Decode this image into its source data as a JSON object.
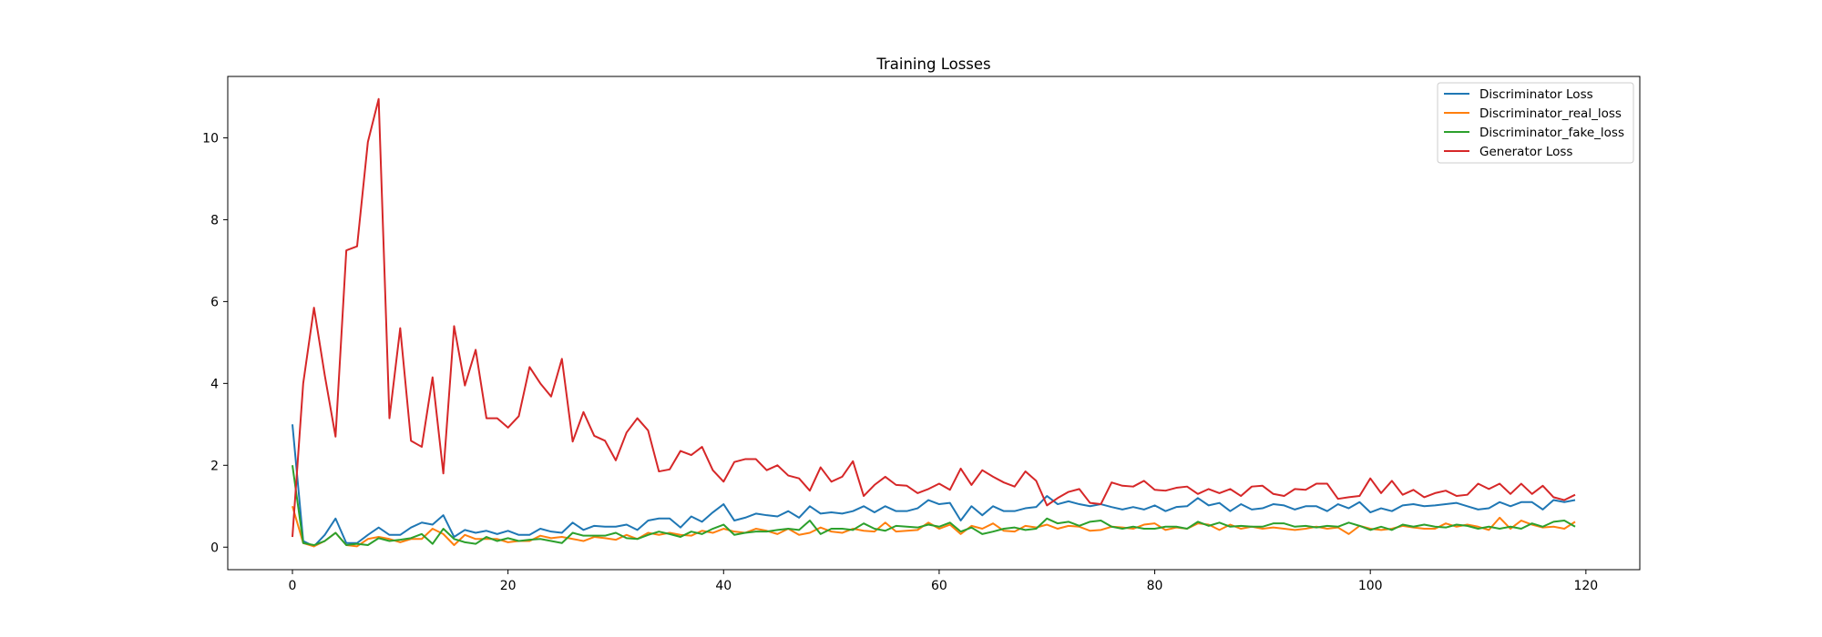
{
  "chart_data": {
    "type": "line",
    "title": "Training Losses",
    "xlabel": "",
    "ylabel": "",
    "xlim": [
      -6,
      125
    ],
    "ylim": [
      -0.55,
      11.5
    ],
    "xticks": [
      0,
      20,
      40,
      60,
      80,
      100,
      120
    ],
    "yticks": [
      0,
      2,
      4,
      6,
      8,
      10
    ],
    "grid": false,
    "legend_position": "top-right",
    "x": [
      0,
      1,
      2,
      3,
      4,
      5,
      6,
      7,
      8,
      9,
      10,
      11,
      12,
      13,
      14,
      15,
      16,
      17,
      18,
      19,
      20,
      21,
      22,
      23,
      24,
      25,
      26,
      27,
      28,
      29,
      30,
      31,
      32,
      33,
      34,
      35,
      36,
      37,
      38,
      39,
      40,
      41,
      42,
      43,
      44,
      45,
      46,
      47,
      48,
      49,
      50,
      51,
      52,
      53,
      54,
      55,
      56,
      57,
      58,
      59,
      60,
      61,
      62,
      63,
      64,
      65,
      66,
      67,
      68,
      69,
      70,
      71,
      72,
      73,
      74,
      75,
      76,
      77,
      78,
      79,
      80,
      81,
      82,
      83,
      84,
      85,
      86,
      87,
      88,
      89,
      90,
      91,
      92,
      93,
      94,
      95,
      96,
      97,
      98,
      99,
      100,
      101,
      102,
      103,
      104,
      105,
      106,
      107,
      108,
      109,
      110,
      111,
      112,
      113,
      114,
      115,
      116,
      117,
      118,
      119
    ],
    "series": [
      {
        "name": "Discriminator Loss",
        "color": "#1f77b4",
        "values": [
          3.0,
          0.15,
          0.02,
          0.3,
          0.7,
          0.1,
          0.1,
          0.3,
          0.48,
          0.3,
          0.3,
          0.48,
          0.6,
          0.55,
          0.78,
          0.25,
          0.42,
          0.35,
          0.4,
          0.32,
          0.4,
          0.3,
          0.3,
          0.45,
          0.38,
          0.35,
          0.6,
          0.42,
          0.52,
          0.5,
          0.5,
          0.55,
          0.42,
          0.65,
          0.7,
          0.7,
          0.48,
          0.75,
          0.62,
          0.85,
          1.05,
          0.65,
          0.72,
          0.82,
          0.78,
          0.75,
          0.88,
          0.72,
          1.0,
          0.82,
          0.85,
          0.82,
          0.88,
          1.0,
          0.85,
          1.0,
          0.88,
          0.88,
          0.95,
          1.15,
          1.05,
          1.08,
          0.65,
          1.0,
          0.78,
          1.0,
          0.88,
          0.88,
          0.95,
          0.98,
          1.25,
          1.05,
          1.12,
          1.05,
          1.0,
          1.05,
          0.98,
          0.92,
          0.98,
          0.92,
          1.02,
          0.88,
          0.98,
          1.0,
          1.2,
          1.02,
          1.08,
          0.88,
          1.05,
          0.92,
          0.95,
          1.05,
          1.02,
          0.92,
          1.0,
          1.0,
          0.88,
          1.05,
          0.95,
          1.1,
          0.85,
          0.95,
          0.88,
          1.02,
          1.05,
          1.0,
          1.02,
          1.05,
          1.08,
          1.0,
          0.92,
          0.95,
          1.1,
          1.0,
          1.1,
          1.1,
          0.92,
          1.15,
          1.1,
          1.15
        ]
      },
      {
        "name": "Discriminator_real_loss",
        "color": "#ff7f0e",
        "values": [
          1.0,
          0.1,
          0.02,
          0.15,
          0.35,
          0.05,
          0.02,
          0.2,
          0.25,
          0.2,
          0.12,
          0.2,
          0.2,
          0.45,
          0.32,
          0.05,
          0.3,
          0.2,
          0.2,
          0.2,
          0.12,
          0.15,
          0.15,
          0.28,
          0.22,
          0.25,
          0.2,
          0.15,
          0.25,
          0.22,
          0.18,
          0.3,
          0.2,
          0.35,
          0.3,
          0.35,
          0.3,
          0.28,
          0.4,
          0.35,
          0.45,
          0.38,
          0.35,
          0.45,
          0.4,
          0.32,
          0.45,
          0.3,
          0.35,
          0.48,
          0.38,
          0.35,
          0.45,
          0.4,
          0.38,
          0.6,
          0.38,
          0.4,
          0.42,
          0.6,
          0.45,
          0.55,
          0.32,
          0.52,
          0.45,
          0.58,
          0.4,
          0.38,
          0.52,
          0.48,
          0.55,
          0.45,
          0.52,
          0.5,
          0.4,
          0.42,
          0.5,
          0.48,
          0.45,
          0.55,
          0.58,
          0.42,
          0.48,
          0.45,
          0.58,
          0.55,
          0.42,
          0.55,
          0.45,
          0.5,
          0.45,
          0.48,
          0.45,
          0.42,
          0.45,
          0.5,
          0.45,
          0.48,
          0.32,
          0.52,
          0.45,
          0.42,
          0.45,
          0.52,
          0.48,
          0.45,
          0.45,
          0.58,
          0.5,
          0.55,
          0.5,
          0.42,
          0.72,
          0.45,
          0.65,
          0.55,
          0.48,
          0.5,
          0.45,
          0.62
        ]
      },
      {
        "name": "Discriminator_fake_loss",
        "color": "#2ca02c",
        "values": [
          2.0,
          0.1,
          0.05,
          0.15,
          0.35,
          0.05,
          0.08,
          0.05,
          0.22,
          0.15,
          0.18,
          0.22,
          0.32,
          0.08,
          0.45,
          0.2,
          0.12,
          0.08,
          0.25,
          0.15,
          0.22,
          0.15,
          0.18,
          0.2,
          0.15,
          0.1,
          0.35,
          0.28,
          0.28,
          0.28,
          0.35,
          0.22,
          0.2,
          0.3,
          0.38,
          0.32,
          0.25,
          0.38,
          0.32,
          0.45,
          0.55,
          0.3,
          0.35,
          0.38,
          0.38,
          0.42,
          0.45,
          0.42,
          0.65,
          0.32,
          0.45,
          0.45,
          0.42,
          0.58,
          0.45,
          0.4,
          0.52,
          0.5,
          0.48,
          0.55,
          0.5,
          0.6,
          0.38,
          0.48,
          0.32,
          0.38,
          0.45,
          0.48,
          0.42,
          0.45,
          0.7,
          0.58,
          0.62,
          0.52,
          0.62,
          0.65,
          0.5,
          0.45,
          0.5,
          0.45,
          0.45,
          0.5,
          0.5,
          0.45,
          0.62,
          0.52,
          0.6,
          0.5,
          0.52,
          0.5,
          0.5,
          0.58,
          0.58,
          0.5,
          0.52,
          0.48,
          0.52,
          0.5,
          0.6,
          0.52,
          0.42,
          0.5,
          0.42,
          0.55,
          0.5,
          0.55,
          0.5,
          0.48,
          0.55,
          0.52,
          0.45,
          0.5,
          0.45,
          0.5,
          0.45,
          0.58,
          0.5,
          0.62,
          0.65,
          0.5
        ]
      },
      {
        "name": "Generator Loss",
        "color": "#d62728",
        "values": [
          0.25,
          4.0,
          5.85,
          4.2,
          2.7,
          7.25,
          7.35,
          9.9,
          10.95,
          3.15,
          5.35,
          2.6,
          2.45,
          4.15,
          1.8,
          5.4,
          3.95,
          4.82,
          3.15,
          3.15,
          2.92,
          3.2,
          4.4,
          4.0,
          3.68,
          4.6,
          2.58,
          3.3,
          2.72,
          2.6,
          2.12,
          2.8,
          3.15,
          2.85,
          1.85,
          1.9,
          2.35,
          2.25,
          2.45,
          1.88,
          1.6,
          2.08,
          2.15,
          2.15,
          1.88,
          2.0,
          1.75,
          1.68,
          1.38,
          1.95,
          1.6,
          1.72,
          2.1,
          1.25,
          1.52,
          1.72,
          1.52,
          1.5,
          1.32,
          1.42,
          1.55,
          1.4,
          1.92,
          1.52,
          1.88,
          1.72,
          1.58,
          1.48,
          1.85,
          1.62,
          1.02,
          1.2,
          1.35,
          1.42,
          1.08,
          1.05,
          1.58,
          1.5,
          1.48,
          1.62,
          1.4,
          1.38,
          1.45,
          1.48,
          1.3,
          1.42,
          1.32,
          1.42,
          1.25,
          1.48,
          1.5,
          1.3,
          1.25,
          1.42,
          1.4,
          1.55,
          1.55,
          1.18,
          1.22,
          1.25,
          1.68,
          1.32,
          1.62,
          1.28,
          1.4,
          1.22,
          1.32,
          1.38,
          1.25,
          1.28,
          1.55,
          1.42,
          1.55,
          1.3,
          1.55,
          1.3,
          1.5,
          1.22,
          1.15,
          1.28
        ]
      }
    ]
  }
}
